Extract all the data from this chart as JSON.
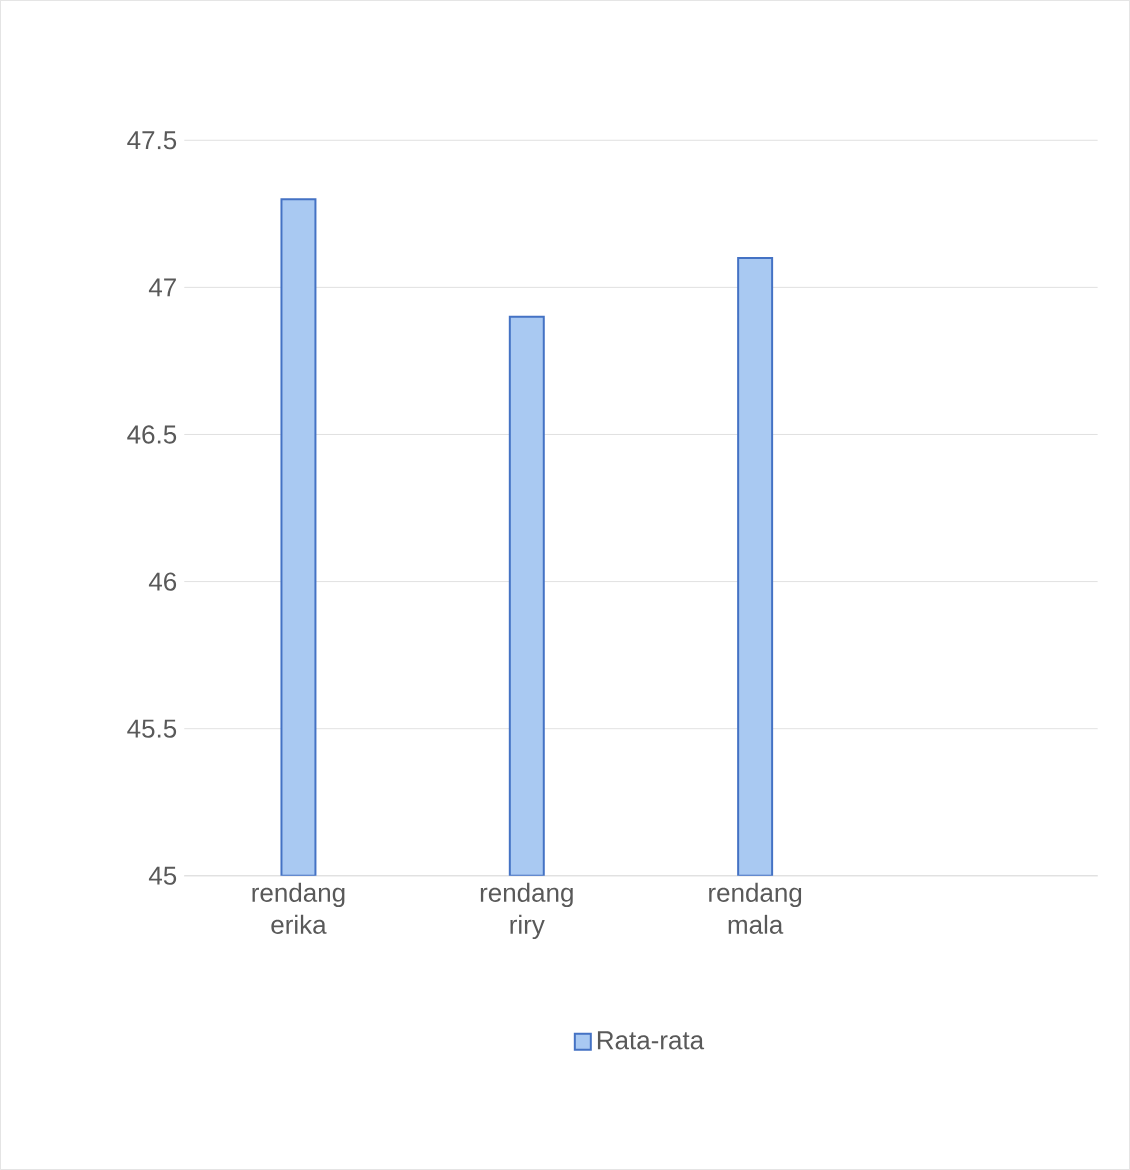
{
  "chart_data": {
    "type": "bar",
    "categories": [
      "rendang erika",
      "rendang riry",
      "rendang mala",
      null
    ],
    "series": [
      {
        "name": "Rata-rata",
        "color": "#a9c9f2",
        "values": [
          47.3,
          46.9,
          47.1,
          null
        ]
      }
    ],
    "ylim": [
      45,
      47.5
    ],
    "yticks": [
      45,
      45.5,
      46,
      46.5,
      47,
      47.5
    ],
    "grid": "y",
    "legend": "bottom"
  }
}
